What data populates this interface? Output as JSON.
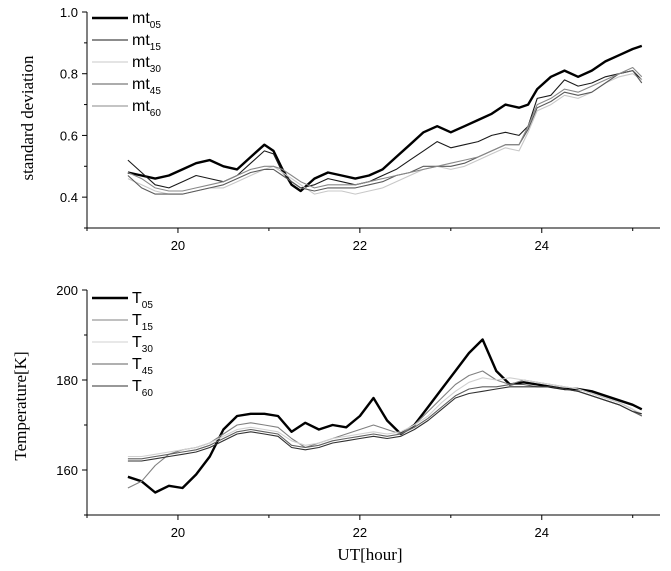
{
  "chart_data": [
    {
      "type": "line",
      "ylabel": "standard deviation",
      "xlabel": "",
      "xlim": [
        19,
        25.3
      ],
      "ylim": [
        0.3,
        1.0
      ],
      "xticks": [
        20,
        22,
        24
      ],
      "yticks": [
        0.4,
        0.6,
        0.8,
        1.0
      ],
      "ytick_labels": [
        "0.4",
        "0.6",
        "0.8",
        "1.0"
      ],
      "grid": false,
      "legend_position": "top-left",
      "series": [
        {
          "base": "mt",
          "sub": "05",
          "color": "#000000",
          "width": 2.4,
          "x": [
            19.45,
            19.6,
            19.75,
            19.9,
            20.05,
            20.2,
            20.35,
            20.5,
            20.65,
            20.8,
            20.95,
            21.05,
            21.15,
            21.25,
            21.35,
            21.5,
            21.65,
            21.8,
            21.95,
            22.1,
            22.25,
            22.4,
            22.55,
            22.7,
            22.85,
            23.0,
            23.15,
            23.3,
            23.45,
            23.6,
            23.75,
            23.85,
            23.95,
            24.1,
            24.25,
            24.4,
            24.55,
            24.7,
            24.85,
            25.0,
            25.1
          ],
          "y": [
            0.48,
            0.47,
            0.46,
            0.47,
            0.49,
            0.51,
            0.52,
            0.5,
            0.49,
            0.53,
            0.57,
            0.55,
            0.49,
            0.44,
            0.42,
            0.46,
            0.48,
            0.47,
            0.46,
            0.47,
            0.49,
            0.53,
            0.57,
            0.61,
            0.63,
            0.61,
            0.63,
            0.65,
            0.67,
            0.7,
            0.69,
            0.7,
            0.75,
            0.79,
            0.81,
            0.79,
            0.81,
            0.84,
            0.86,
            0.88,
            0.89
          ]
        },
        {
          "base": "mt",
          "sub": "15",
          "color": "#1a1a1a",
          "width": 1.1,
          "x": [
            19.45,
            19.6,
            19.75,
            19.9,
            20.05,
            20.2,
            20.35,
            20.5,
            20.65,
            20.8,
            20.95,
            21.05,
            21.15,
            21.25,
            21.35,
            21.5,
            21.65,
            21.8,
            21.95,
            22.1,
            22.25,
            22.4,
            22.55,
            22.7,
            22.85,
            23.0,
            23.15,
            23.3,
            23.45,
            23.6,
            23.75,
            23.85,
            23.95,
            24.1,
            24.25,
            24.4,
            24.55,
            24.7,
            24.85,
            25.0,
            25.1
          ],
          "y": [
            0.52,
            0.48,
            0.44,
            0.43,
            0.45,
            0.47,
            0.46,
            0.45,
            0.47,
            0.51,
            0.55,
            0.54,
            0.48,
            0.45,
            0.43,
            0.44,
            0.46,
            0.45,
            0.44,
            0.45,
            0.47,
            0.49,
            0.52,
            0.55,
            0.58,
            0.56,
            0.57,
            0.58,
            0.6,
            0.61,
            0.6,
            0.63,
            0.72,
            0.73,
            0.78,
            0.76,
            0.77,
            0.79,
            0.8,
            0.81,
            0.78
          ]
        },
        {
          "base": "mt",
          "sub": "30",
          "color": "#c8c8c8",
          "width": 1.1,
          "x": [
            19.45,
            19.6,
            19.75,
            19.9,
            20.05,
            20.2,
            20.35,
            20.5,
            20.65,
            20.8,
            20.95,
            21.05,
            21.15,
            21.25,
            21.35,
            21.5,
            21.65,
            21.8,
            21.95,
            22.1,
            22.25,
            22.4,
            22.55,
            22.7,
            22.85,
            23.0,
            23.15,
            23.3,
            23.45,
            23.6,
            23.75,
            23.85,
            23.95,
            24.1,
            24.25,
            24.4,
            24.55,
            24.7,
            24.85,
            25.0,
            25.1
          ],
          "y": [
            0.46,
            0.44,
            0.42,
            0.41,
            0.41,
            0.42,
            0.43,
            0.43,
            0.45,
            0.47,
            0.49,
            0.5,
            0.48,
            0.46,
            0.44,
            0.41,
            0.42,
            0.42,
            0.41,
            0.42,
            0.43,
            0.45,
            0.47,
            0.49,
            0.5,
            0.49,
            0.5,
            0.52,
            0.54,
            0.56,
            0.55,
            0.61,
            0.68,
            0.7,
            0.73,
            0.72,
            0.74,
            0.77,
            0.79,
            0.8,
            0.78
          ]
        },
        {
          "base": "mt",
          "sub": "45",
          "color": "#5a5a5a",
          "width": 1.1,
          "x": [
            19.45,
            19.6,
            19.75,
            19.9,
            20.05,
            20.2,
            20.35,
            20.5,
            20.65,
            20.8,
            20.95,
            21.05,
            21.15,
            21.25,
            21.35,
            21.5,
            21.65,
            21.8,
            21.95,
            22.1,
            22.25,
            22.4,
            22.55,
            22.7,
            22.85,
            23.0,
            23.15,
            23.3,
            23.45,
            23.6,
            23.75,
            23.85,
            23.95,
            24.1,
            24.25,
            24.4,
            24.55,
            24.7,
            24.85,
            25.0,
            25.1
          ],
          "y": [
            0.47,
            0.43,
            0.41,
            0.41,
            0.41,
            0.42,
            0.43,
            0.44,
            0.46,
            0.48,
            0.49,
            0.49,
            0.47,
            0.45,
            0.43,
            0.42,
            0.43,
            0.43,
            0.43,
            0.44,
            0.45,
            0.47,
            0.48,
            0.5,
            0.5,
            0.5,
            0.51,
            0.53,
            0.55,
            0.57,
            0.57,
            0.62,
            0.69,
            0.71,
            0.74,
            0.73,
            0.74,
            0.77,
            0.8,
            0.81,
            0.77
          ]
        },
        {
          "base": "mt",
          "sub": "60",
          "color": "#888888",
          "width": 1.1,
          "x": [
            19.45,
            19.6,
            19.75,
            19.9,
            20.05,
            20.2,
            20.35,
            20.5,
            20.65,
            20.8,
            20.95,
            21.05,
            21.15,
            21.25,
            21.35,
            21.5,
            21.65,
            21.8,
            21.95,
            22.1,
            22.25,
            22.4,
            22.55,
            22.7,
            22.85,
            23.0,
            23.15,
            23.3,
            23.45,
            23.6,
            23.75,
            23.85,
            23.95,
            24.1,
            24.25,
            24.4,
            24.55,
            24.7,
            24.85,
            25.0,
            25.1
          ],
          "y": [
            0.48,
            0.46,
            0.43,
            0.42,
            0.42,
            0.43,
            0.44,
            0.45,
            0.47,
            0.49,
            0.5,
            0.5,
            0.49,
            0.47,
            0.45,
            0.43,
            0.44,
            0.44,
            0.44,
            0.45,
            0.46,
            0.47,
            0.48,
            0.49,
            0.5,
            0.51,
            0.52,
            0.53,
            0.55,
            0.57,
            0.57,
            0.63,
            0.7,
            0.72,
            0.75,
            0.74,
            0.76,
            0.78,
            0.8,
            0.82,
            0.79
          ]
        }
      ]
    },
    {
      "type": "line",
      "ylabel": "Temperature[K]",
      "xlabel": "UT[hour]",
      "xlim": [
        19,
        25.3
      ],
      "ylim": [
        150,
        200
      ],
      "xticks": [
        20,
        22,
        24
      ],
      "yticks": [
        160,
        180,
        200
      ],
      "ytick_labels": [
        "160",
        "180",
        "200"
      ],
      "grid": false,
      "legend_position": "top-left",
      "series": [
        {
          "base": "T",
          "sub": "05",
          "color": "#000000",
          "width": 2.4,
          "x": [
            19.45,
            19.6,
            19.75,
            19.9,
            20.05,
            20.2,
            20.35,
            20.5,
            20.65,
            20.8,
            20.95,
            21.1,
            21.25,
            21.4,
            21.55,
            21.7,
            21.85,
            22.0,
            22.15,
            22.3,
            22.45,
            22.6,
            22.75,
            22.9,
            23.05,
            23.2,
            23.35,
            23.5,
            23.65,
            23.8,
            23.95,
            24.1,
            24.25,
            24.4,
            24.55,
            24.7,
            24.85,
            25.0,
            25.1
          ],
          "y": [
            158.5,
            157.5,
            155.0,
            156.5,
            156.0,
            159.0,
            163.0,
            169.0,
            172.0,
            172.5,
            172.5,
            172.0,
            168.5,
            170.5,
            169.0,
            170.0,
            169.5,
            172.0,
            176.0,
            171.0,
            168.0,
            170.0,
            174.0,
            178.0,
            182.0,
            186.0,
            189.0,
            182.0,
            179.0,
            179.5,
            179.0,
            178.5,
            178.0,
            178.0,
            177.5,
            176.5,
            175.5,
            174.5,
            173.5
          ]
        },
        {
          "base": "T",
          "sub": "15",
          "color": "#808080",
          "width": 1.1,
          "x": [
            19.45,
            19.6,
            19.75,
            19.9,
            20.05,
            20.2,
            20.35,
            20.5,
            20.65,
            20.8,
            20.95,
            21.1,
            21.25,
            21.4,
            21.55,
            21.7,
            21.85,
            22.0,
            22.15,
            22.3,
            22.45,
            22.6,
            22.75,
            22.9,
            23.05,
            23.2,
            23.35,
            23.5,
            23.65,
            23.8,
            23.95,
            24.1,
            24.25,
            24.4,
            24.55,
            24.7,
            24.85,
            25.0,
            25.1
          ],
          "y": [
            156.0,
            157.5,
            161.0,
            163.5,
            164.5,
            165.0,
            166.0,
            168.0,
            170.0,
            170.5,
            170.0,
            169.5,
            167.0,
            165.0,
            166.0,
            167.0,
            168.0,
            169.0,
            170.0,
            169.0,
            168.0,
            170.0,
            173.0,
            176.0,
            179.0,
            181.0,
            182.0,
            180.0,
            179.0,
            180.0,
            179.5,
            179.0,
            178.5,
            178.0,
            177.0,
            176.0,
            175.0,
            173.5,
            172.0
          ]
        },
        {
          "base": "T",
          "sub": "30",
          "color": "#d0d0d0",
          "width": 1.1,
          "x": [
            19.45,
            19.6,
            19.75,
            19.9,
            20.05,
            20.2,
            20.35,
            20.5,
            20.65,
            20.8,
            20.95,
            21.1,
            21.25,
            21.4,
            21.55,
            21.7,
            21.85,
            22.0,
            22.15,
            22.3,
            22.45,
            22.6,
            22.75,
            22.9,
            23.05,
            23.2,
            23.35,
            23.5,
            23.65,
            23.8,
            23.95,
            24.1,
            24.25,
            24.4,
            24.55,
            24.7,
            24.85,
            25.0,
            25.1
          ],
          "y": [
            163.0,
            163.0,
            163.5,
            164.0,
            164.5,
            165.0,
            166.0,
            167.5,
            169.0,
            169.5,
            169.0,
            168.5,
            166.5,
            165.5,
            166.0,
            167.0,
            167.5,
            168.0,
            168.5,
            168.0,
            168.5,
            170.0,
            172.0,
            175.0,
            177.5,
            179.5,
            180.5,
            180.0,
            180.5,
            180.0,
            179.5,
            179.0,
            178.5,
            178.0,
            177.0,
            176.0,
            175.0,
            173.5,
            172.5
          ]
        },
        {
          "base": "T",
          "sub": "45",
          "color": "#606060",
          "width": 1.1,
          "x": [
            19.45,
            19.6,
            19.75,
            19.9,
            20.05,
            20.2,
            20.35,
            20.5,
            20.65,
            20.8,
            20.95,
            21.1,
            21.25,
            21.4,
            21.55,
            21.7,
            21.85,
            22.0,
            22.15,
            22.3,
            22.45,
            22.6,
            22.75,
            22.9,
            23.05,
            23.2,
            23.35,
            23.5,
            23.65,
            23.8,
            23.95,
            24.1,
            24.25,
            24.4,
            24.55,
            24.7,
            24.85,
            25.0,
            25.1
          ],
          "y": [
            162.5,
            162.5,
            163.0,
            163.5,
            164.0,
            164.5,
            165.5,
            167.0,
            168.5,
            169.0,
            168.5,
            168.0,
            165.5,
            165.0,
            165.5,
            166.5,
            167.0,
            167.5,
            168.0,
            167.5,
            168.0,
            169.5,
            171.5,
            174.0,
            176.5,
            178.0,
            178.5,
            178.5,
            179.0,
            179.0,
            178.5,
            178.5,
            178.0,
            177.5,
            176.5,
            175.5,
            174.5,
            173.0,
            172.0
          ]
        },
        {
          "base": "T",
          "sub": "60",
          "color": "#303030",
          "width": 1.1,
          "x": [
            19.45,
            19.6,
            19.75,
            19.9,
            20.05,
            20.2,
            20.35,
            20.5,
            20.65,
            20.8,
            20.95,
            21.1,
            21.25,
            21.4,
            21.55,
            21.7,
            21.85,
            22.0,
            22.15,
            22.3,
            22.45,
            22.6,
            22.75,
            22.9,
            23.05,
            23.2,
            23.35,
            23.5,
            23.65,
            23.8,
            23.95,
            24.1,
            24.25,
            24.4,
            24.55,
            24.7,
            24.85,
            25.0,
            25.1
          ],
          "y": [
            162.0,
            162.0,
            162.5,
            163.0,
            163.5,
            164.0,
            165.0,
            166.5,
            168.0,
            168.5,
            168.0,
            167.5,
            165.0,
            164.5,
            165.0,
            166.0,
            166.5,
            167.0,
            167.5,
            167.0,
            167.5,
            169.0,
            171.0,
            173.5,
            176.0,
            177.0,
            177.5,
            178.0,
            178.5,
            178.5,
            178.5,
            178.5,
            178.0,
            177.5,
            176.5,
            175.5,
            174.5,
            173.0,
            172.5
          ]
        }
      ]
    }
  ]
}
